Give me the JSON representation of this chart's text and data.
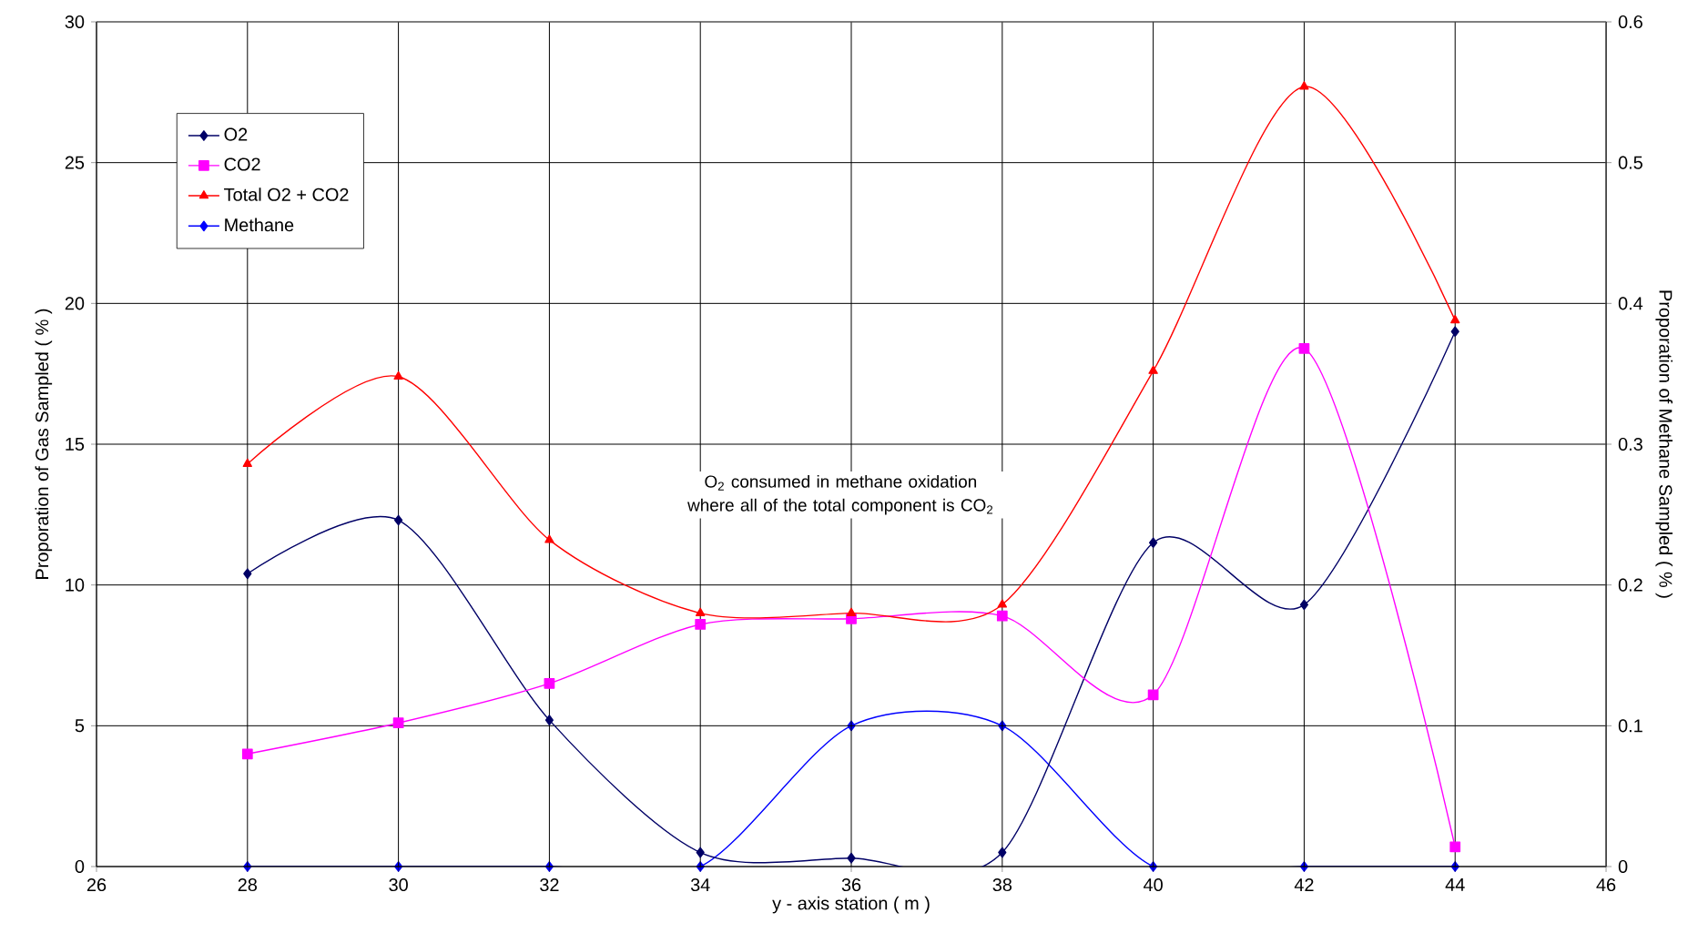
{
  "chart_data": {
    "type": "line",
    "x": [
      28,
      30,
      32,
      34,
      36,
      38,
      40,
      42,
      44
    ],
    "series": [
      {
        "name": "O2",
        "color": "#000066",
        "marker": "diamond",
        "values": [
          10.4,
          12.3,
          5.2,
          0.5,
          0.3,
          0.5,
          11.5,
          9.3,
          19.0
        ]
      },
      {
        "name": "CO2",
        "color": "#ff00ff",
        "marker": "square",
        "values": [
          4.0,
          5.1,
          6.5,
          8.6,
          8.8,
          8.9,
          6.1,
          18.4,
          0.7
        ]
      },
      {
        "name": "Total O2 + CO2",
        "color": "#ff0000",
        "marker": "triangle",
        "values": [
          14.3,
          17.4,
          11.6,
          9.0,
          9.0,
          9.3,
          17.6,
          27.7,
          19.4
        ]
      },
      {
        "name": "Methane",
        "color": "#0000ff",
        "marker": "diamond",
        "axis": "y2",
        "values": [
          0,
          0,
          0,
          0,
          0.1,
          0.1,
          0,
          0,
          0
        ]
      }
    ],
    "xlabel": "y - axis station ( m )",
    "ylabel": "Proporation of Gas Sampled ( % )",
    "y2label": "Proporation of Methane Sampled ( % )",
    "xlim": [
      26,
      46
    ],
    "xticks": [
      26,
      28,
      30,
      32,
      34,
      36,
      38,
      40,
      42,
      44,
      46
    ],
    "ylim": [
      0,
      30
    ],
    "yticks": [
      0,
      5,
      10,
      15,
      20,
      25,
      30
    ],
    "y2lim": [
      0,
      0.6
    ],
    "y2ticks": [
      0,
      0.1,
      0.2,
      0.3,
      0.4,
      0.5,
      0.6
    ],
    "annotations": [
      "O$_{2}$ consumed in methane oxidation where all of the total component is CO$_{2}$"
    ],
    "grid": true,
    "legend": "top left",
    "line_style": "solid"
  }
}
